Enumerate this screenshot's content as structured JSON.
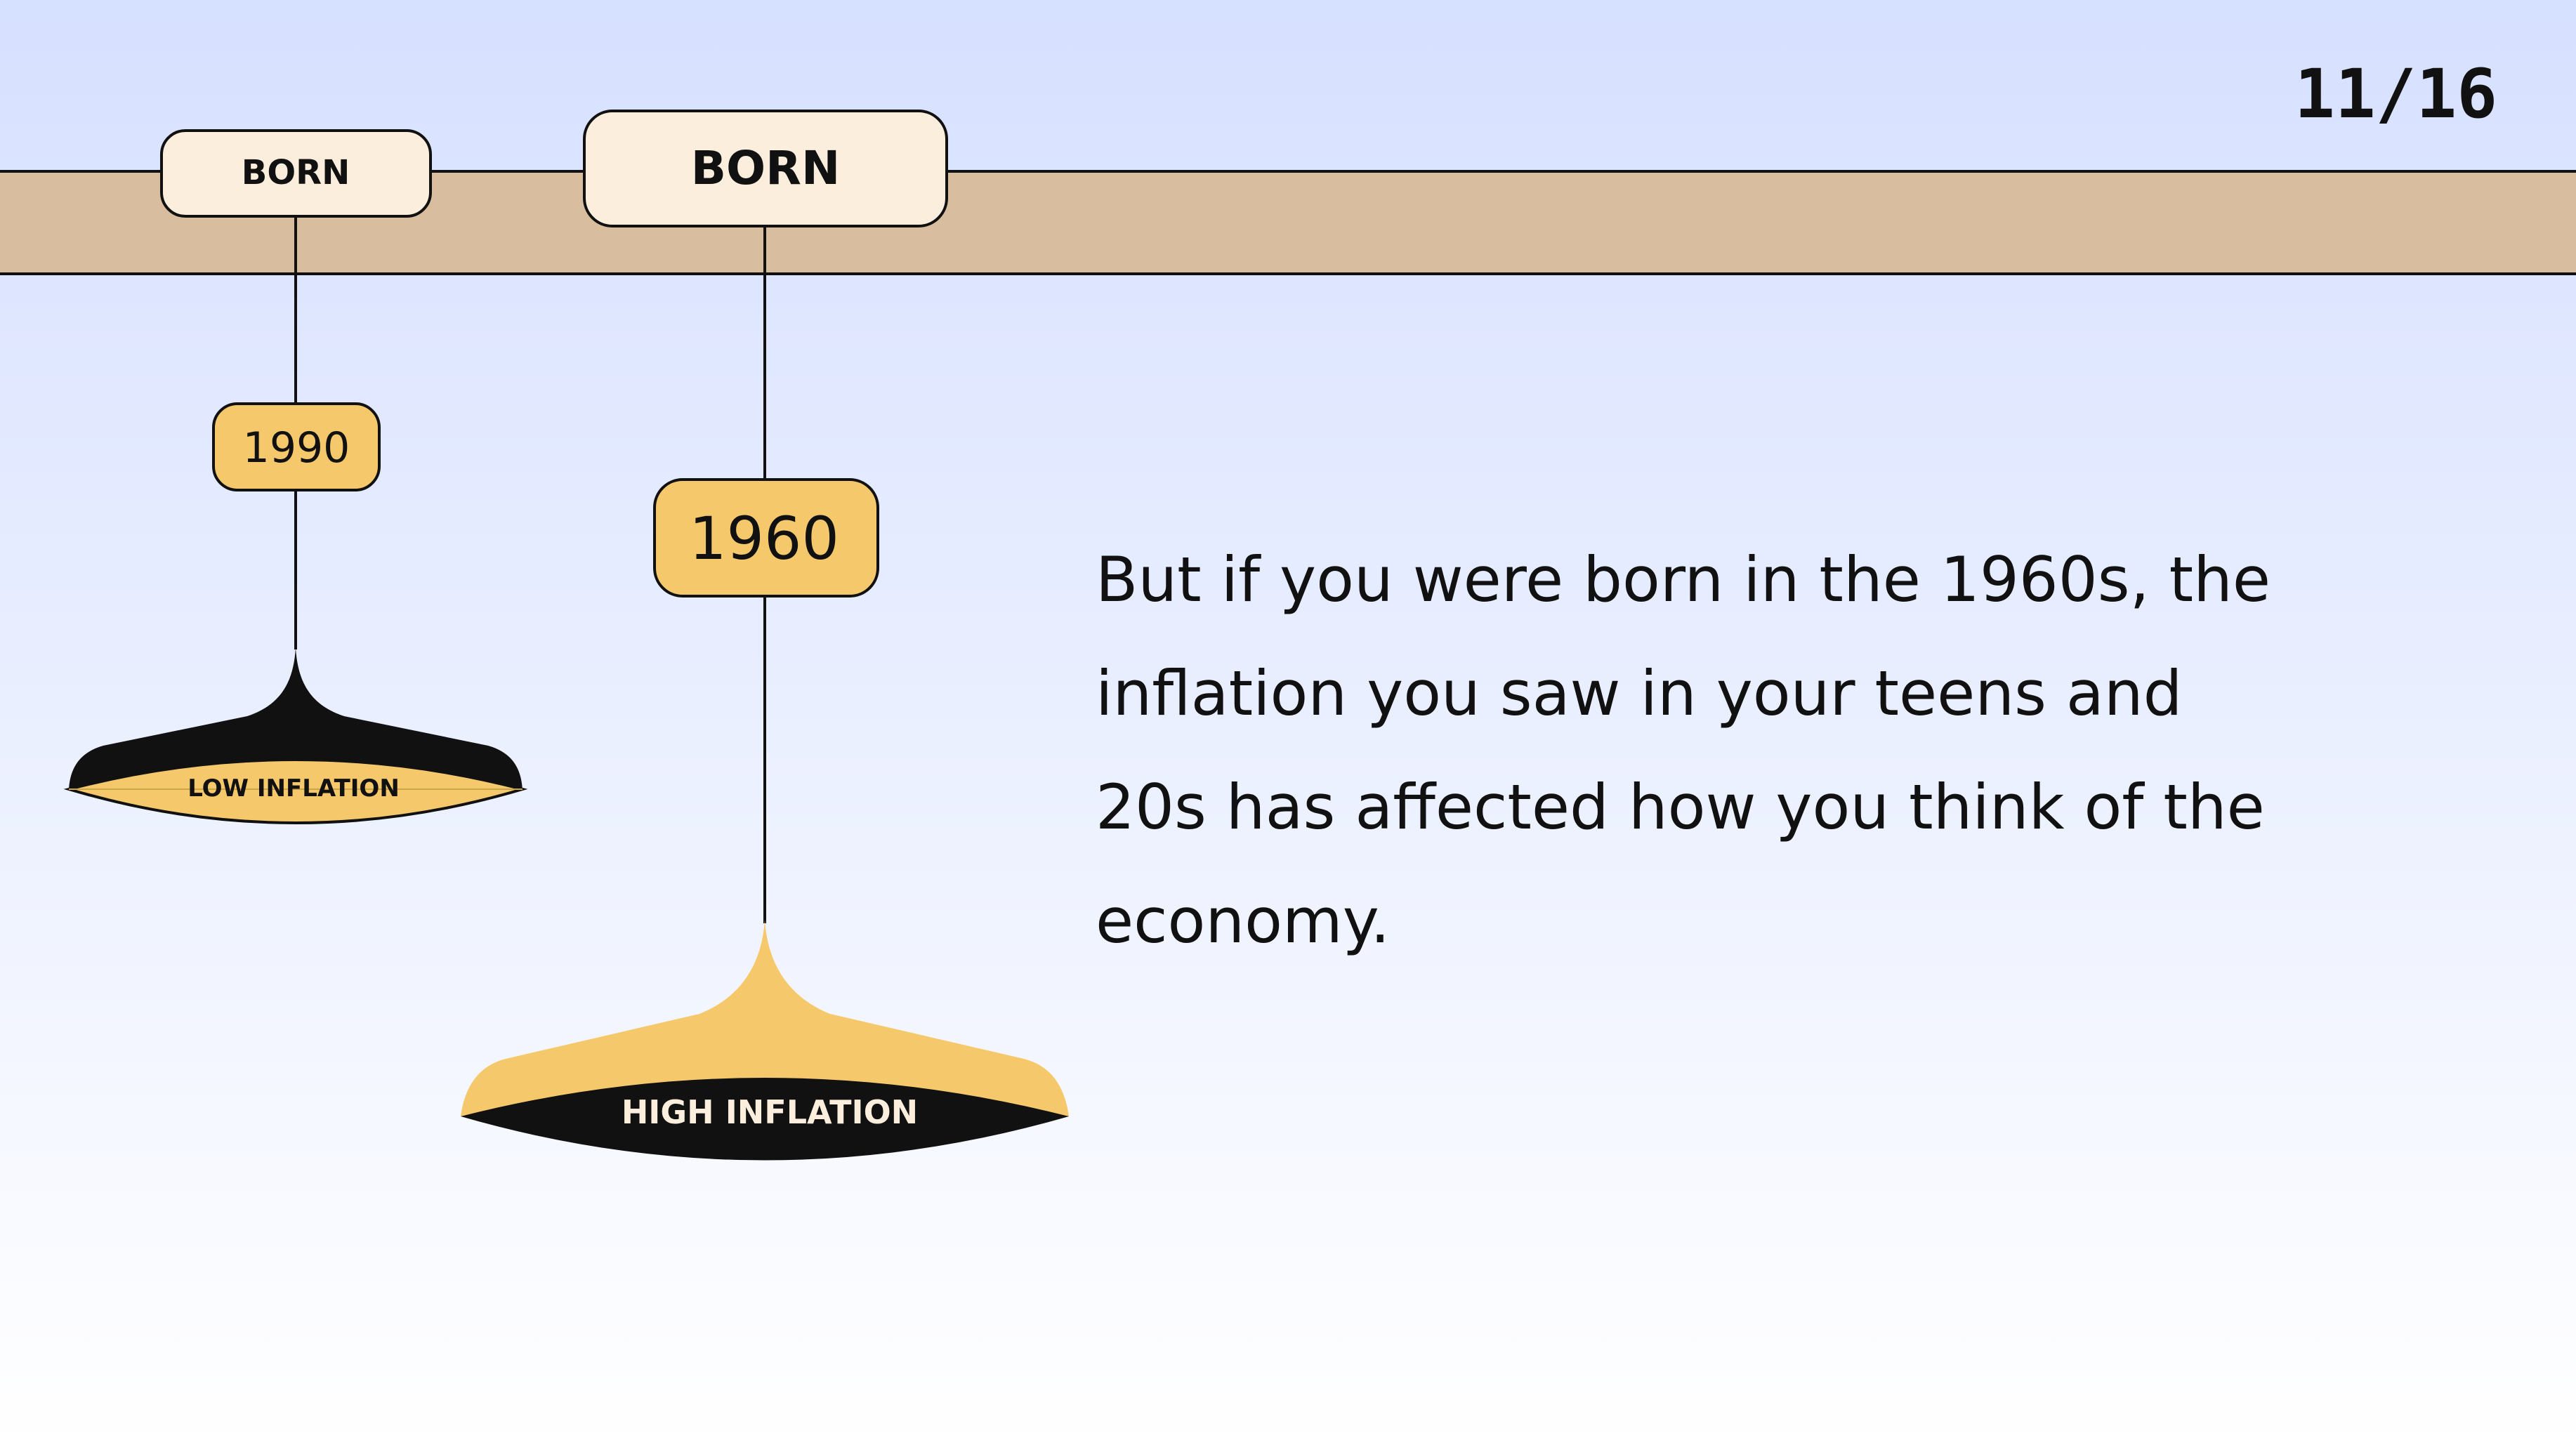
{
  "page": {
    "number": "11/16"
  },
  "colors": {
    "sky_top": "#d6e0ff",
    "sky_bottom": "#ffffff",
    "ceiling": "#d9bd9f",
    "tag_fill": "#fbeedd",
    "year_fill": "#f5c96b",
    "ink": "#111111"
  },
  "lamps": [
    {
      "id": "lamp-1990",
      "born_label": "BORN",
      "year": "1990",
      "inflation_label": "LOW INFLATION"
    },
    {
      "id": "lamp-1960",
      "born_label": "BORN",
      "year": "1960",
      "inflation_label": "HIGH INFLATION"
    }
  ],
  "body_text": {
    "lines": [
      "But if you were born in the 1960s, the",
      "inflation you saw in your teens and",
      "20s has affected how you think of the",
      "economy."
    ]
  }
}
